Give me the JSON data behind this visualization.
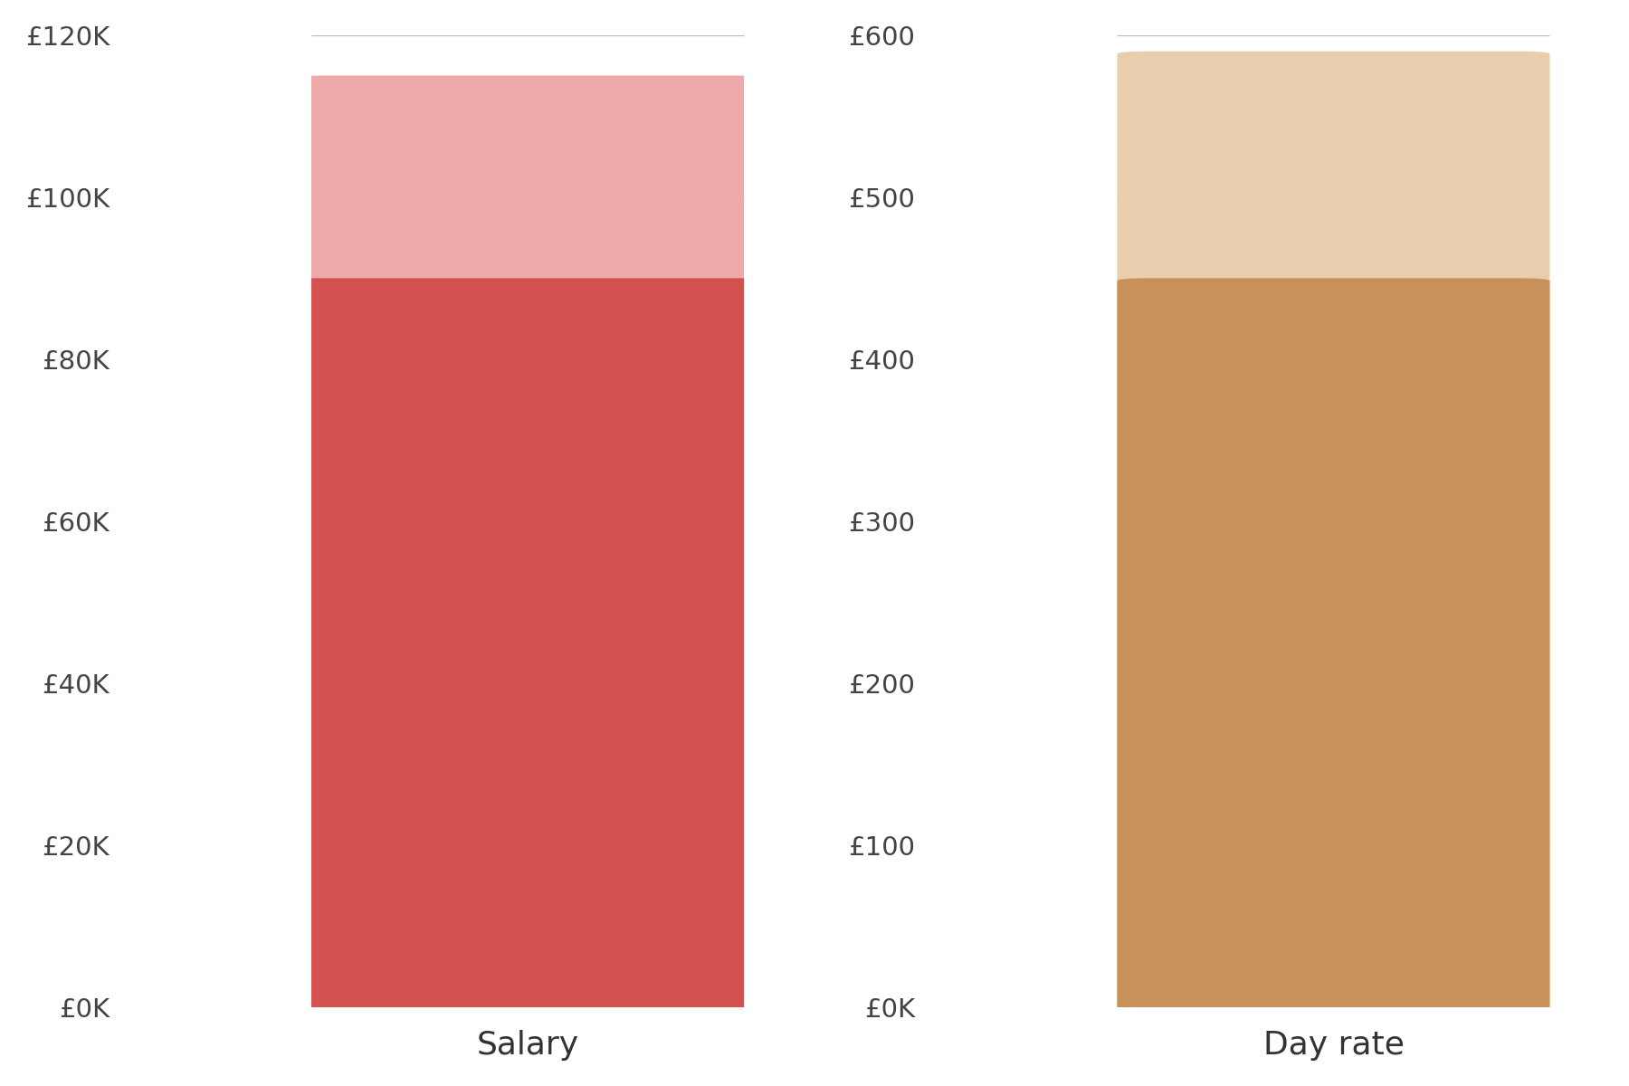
{
  "salary": {
    "dark_value": 90000,
    "light_value": 115000,
    "ymax": 120000,
    "yticks": [
      0,
      20000,
      40000,
      60000,
      80000,
      100000,
      120000
    ],
    "ytick_labels": [
      "£0K",
      "£20K",
      "£40K",
      "£60K",
      "£80K",
      "£100K",
      "£120K"
    ],
    "dark_color": "#D4514F",
    "light_color": "#EEAAAA",
    "xlabel": "Salary"
  },
  "dayrate": {
    "dark_value": 450,
    "light_value": 590,
    "ymax": 600,
    "yticks": [
      0,
      100,
      200,
      300,
      400,
      500,
      600
    ],
    "ytick_labels": [
      "£0K",
      "£100",
      "£200",
      "£300",
      "£400",
      "£500",
      "£600"
    ],
    "dark_color": "#C8915A",
    "light_color": "#E8CEAD",
    "xlabel": "Day rate"
  },
  "background_color": "#FFFFFF",
  "label_fontsize": 24,
  "tick_fontsize": 21,
  "xlabel_fontsize": 26
}
